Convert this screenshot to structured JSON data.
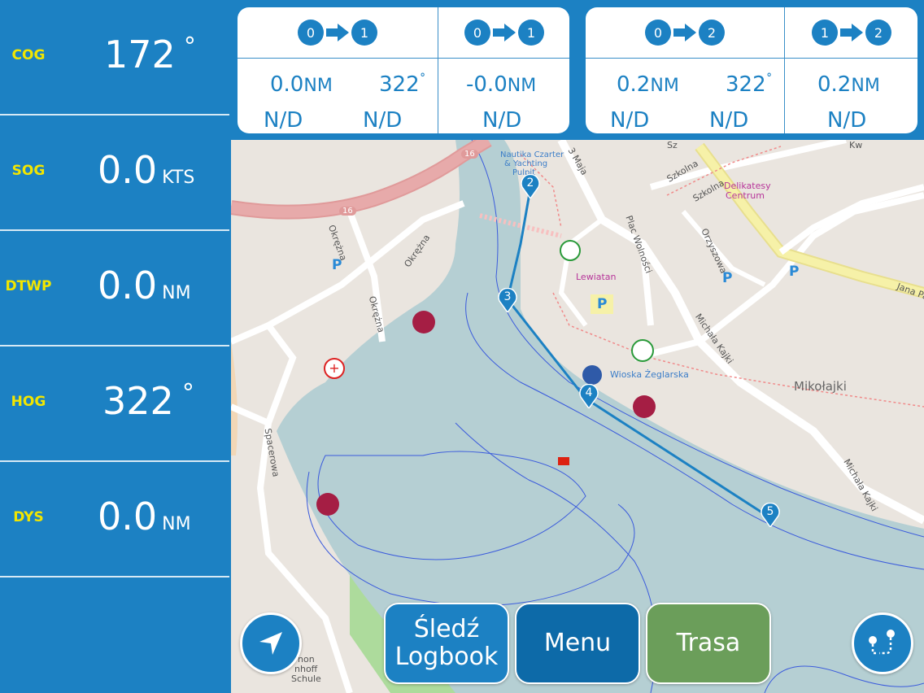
{
  "left_panel": {
    "rows": [
      {
        "label": "COG",
        "value": "172",
        "unit": "°"
      },
      {
        "label": "SOG",
        "value": "0.0",
        "unit": "KTS"
      },
      {
        "label": "DTWP",
        "value": "0.0",
        "unit": "NM"
      },
      {
        "label": "HOG",
        "value": "322",
        "unit": "°"
      },
      {
        "label": "DYS",
        "value": "0.0",
        "unit": "NM"
      }
    ]
  },
  "legs": {
    "card1": {
      "col1": {
        "from": "0",
        "to": "1",
        "distance": "0.0",
        "distance_unit": "NM",
        "bearing": "322",
        "bearing_unit": "˚",
        "eta1": "N/D",
        "eta2": "N/D"
      },
      "col2": {
        "from": "0",
        "to": "1",
        "distance": "-0.0",
        "distance_unit": "NM",
        "eta": "N/D"
      }
    },
    "card2": {
      "col1": {
        "from": "0",
        "to": "2",
        "distance": "0.2",
        "distance_unit": "NM",
        "bearing": "322",
        "bearing_unit": "˚",
        "eta1": "N/D",
        "eta2": "N/D"
      },
      "col2": {
        "from": "1",
        "to": "2",
        "distance": "0.2",
        "distance_unit": "NM",
        "eta": "N/D"
      }
    }
  },
  "map": {
    "labels": {
      "nautika": "Nautika Czarter",
      "nautika2": "& Yachting",
      "nautika3": "Pulpit",
      "road16a": "16",
      "road16b": "16",
      "trzeci_maja": "3 Maja",
      "szkolna1": "Szkolna",
      "szkolna2": "Szkolna",
      "delikatesy1": "Delikatesy",
      "delikatesy2": "Centrum",
      "okrezna1": "Okrężna",
      "okrezna2": "Okrężna",
      "okrezna3": "Okrężna",
      "plac": "Plac Wolności",
      "lewiatan": "Lewiatan",
      "orzyszowa": "Orzyszowa",
      "jana_pawla": "Jana Pa",
      "michala_kajki1": "Michała Kajki",
      "michala_kajki2": "Michała Kajki",
      "wioska": "Wioska Żeglarska",
      "mikolajki": "Mikołajki",
      "spacerowa": "Spacerowa",
      "schule1": "non",
      "schule2": "nhoff",
      "schule3": "Schule",
      "kw": "Kw",
      "sz": "Sz"
    },
    "parking_label": "P",
    "waypoints": [
      "2",
      "3",
      "4",
      "5"
    ],
    "colors": {
      "water": "#b5cfd3",
      "land": "#eae5df",
      "route": "#1c81c3",
      "road_main": "#e8a0a0",
      "road_yellow": "#f6f1a8",
      "park": "#addb9c",
      "marina": "#a51e44"
    }
  },
  "buttons": {
    "locate_icon": "navigation-arrow-icon",
    "track_label_1": "Śledź",
    "track_label_2": "Logbook",
    "menu_label": "Menu",
    "route_label": "Trasa",
    "route_icon": "route-editor-icon"
  },
  "colors": {
    "panel_blue": "#1c81c3",
    "label_yellow": "#f2e600",
    "route_green": "#6b9e5a",
    "button_dark": "#0d6aa8"
  }
}
